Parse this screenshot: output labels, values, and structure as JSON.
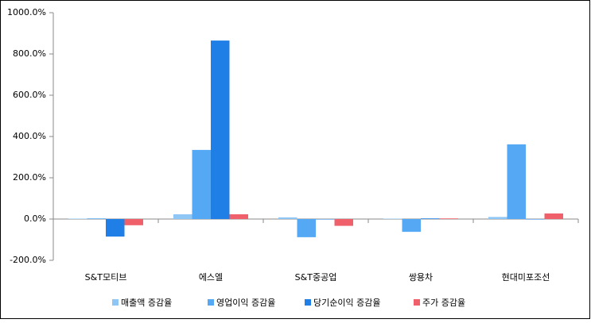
{
  "chart_data": {
    "type": "bar",
    "categories": [
      "S&T모티브",
      "에스엘",
      "S&T중공업",
      "쌍용차",
      "현대미포조선"
    ],
    "series": [
      {
        "name": "매출액 증감율",
        "color": "#8ec6f6",
        "values": [
          2,
          23,
          8,
          2,
          10
        ]
      },
      {
        "name": "영업이익 증감율",
        "color": "#55a9f4",
        "values": [
          3,
          335,
          -88,
          -62,
          362
        ]
      },
      {
        "name": "당기순이익 증감율",
        "color": "#1f7fe6",
        "values": [
          -85,
          865,
          0,
          3,
          0
        ]
      },
      {
        "name": "주가 증감율",
        "color": "#f0606a",
        "values": [
          -30,
          23,
          -33,
          3,
          27
        ]
      }
    ],
    "ylim": [
      -200,
      1000
    ],
    "yticks": [
      {
        "value": -200,
        "label": "-200.0%"
      },
      {
        "value": 0,
        "label": "0.0%"
      },
      {
        "value": 200,
        "label": "200.0%"
      },
      {
        "value": 400,
        "label": "400.0%"
      },
      {
        "value": 600,
        "label": "600.0%"
      },
      {
        "value": 800,
        "label": "800.0%"
      },
      {
        "value": 1000,
        "label": "1000.0%"
      }
    ],
    "grid": false
  }
}
